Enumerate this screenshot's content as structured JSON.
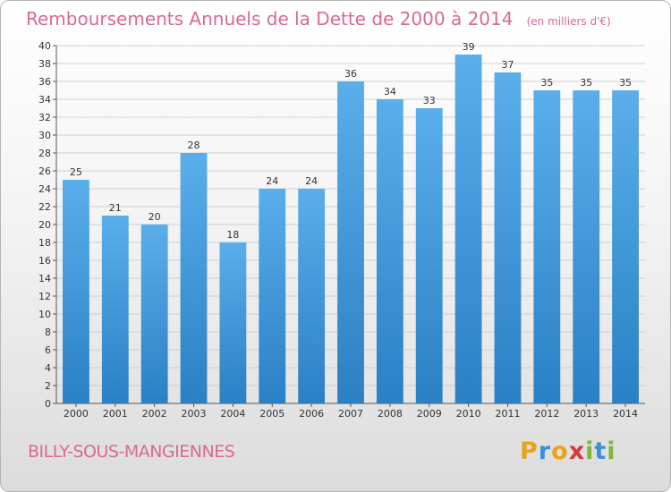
{
  "title": "Remboursements Annuels de la Dette de 2000 à 2014",
  "unit": "(en milliers d'€)",
  "commune": "BILLY-SOUS-MANGIENNES",
  "logo": "Proxiti",
  "colors": {
    "title": "#d96a8e",
    "bar_light": "#5aaeea",
    "bar_dark": "#2b80c4",
    "grid": "#cfcfcf"
  },
  "chart_data": {
    "type": "bar",
    "categories": [
      "2000",
      "2001",
      "2002",
      "2003",
      "2004",
      "2005",
      "2006",
      "2007",
      "2008",
      "2009",
      "2010",
      "2011",
      "2012",
      "2013",
      "2014"
    ],
    "values": [
      25,
      21,
      20,
      28,
      18,
      24,
      24,
      36,
      34,
      33,
      39,
      37,
      35,
      35,
      35
    ],
    "ylim": [
      0,
      40
    ],
    "yticks": [
      0,
      2,
      4,
      6,
      8,
      10,
      12,
      14,
      16,
      18,
      20,
      22,
      24,
      26,
      28,
      30,
      32,
      34,
      36,
      38,
      40
    ],
    "grid": true,
    "title": "Remboursements Annuels de la Dette de 2000 à 2014",
    "xlabel": "",
    "ylabel": ""
  }
}
